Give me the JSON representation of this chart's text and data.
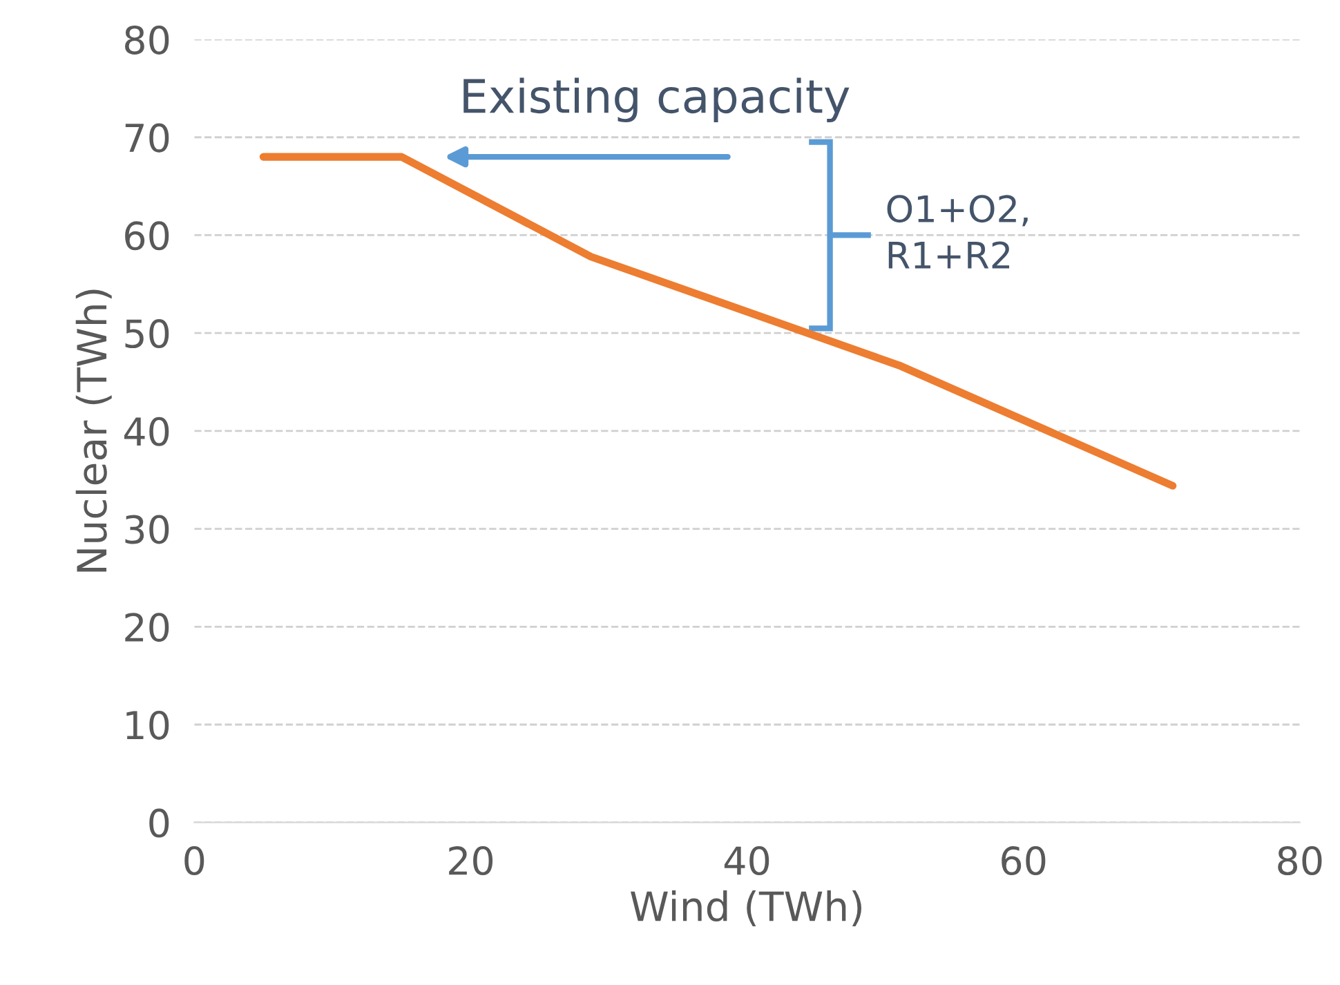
{
  "chart_data": {
    "type": "line",
    "xlabel": "Wind (TWh)",
    "ylabel": "Nuclear (TWh)",
    "x": [
      5,
      15,
      28.7,
      51,
      70.8
    ],
    "series": [
      {
        "color": "#ed7d31",
        "values": [
          68,
          68,
          57.8,
          46.7,
          34.4
        ]
      }
    ],
    "xlim": [
      0,
      80
    ],
    "xticks": [
      0,
      20,
      40,
      60,
      80
    ],
    "ylim": [
      0,
      80
    ],
    "yticks": [
      0,
      10,
      20,
      30,
      40,
      50,
      60,
      70,
      80
    ],
    "grid": "y",
    "marker": "none",
    "line_style": "solid",
    "annotations": [
      {
        "text": "Existing capacity",
        "x": 15,
        "y": 68
      },
      "O1+O2,\nR1+R2"
    ]
  }
}
